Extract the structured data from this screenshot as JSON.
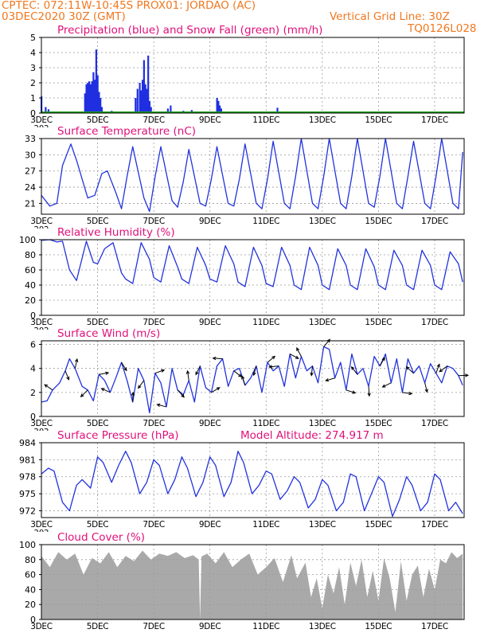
{
  "header": {
    "station": "CPTEC:   072:11W-10:45S   PROX01: JORDAO (AC)",
    "run": "03DEC2020 30Z (GMT)",
    "grid_note": "Vertical Grid Line: 30Z",
    "code": "TQ0126L028"
  },
  "colors": {
    "precip": "#1f2fe0",
    "snow": "#1ea01e",
    "line": "#2233dd",
    "title": "#e0107a",
    "header": "#f07820",
    "cloud": "#a9a9a9",
    "grid": "#9a9a9a"
  },
  "x_axis": {
    "tick_labels": [
      "3DEC",
      "5DEC",
      "7DEC",
      "9DEC",
      "11DEC",
      "13DEC",
      "15DEC",
      "17DEC"
    ],
    "tick_days": [
      3,
      5,
      7,
      9,
      11,
      13,
      15,
      17
    ],
    "cut_label": "202",
    "day_range": [
      3,
      18.05
    ]
  },
  "chart_data": [
    {
      "id": "precip",
      "type": "bar",
      "title": "Precipitation (blue) and Snow Fall (green) (mm/h)",
      "ylim": [
        0,
        5
      ],
      "yticks": [
        0,
        1,
        2,
        3,
        4,
        5
      ],
      "bars": [
        [
          3.0,
          1.1
        ],
        [
          3.15,
          0.4
        ],
        [
          3.25,
          0.25
        ],
        [
          3.6,
          0.1
        ],
        [
          4.55,
          1.3
        ],
        [
          4.6,
          1.9
        ],
        [
          4.65,
          2.0
        ],
        [
          4.7,
          2.1
        ],
        [
          4.75,
          1.9
        ],
        [
          4.8,
          2.1
        ],
        [
          4.85,
          2.7
        ],
        [
          4.9,
          2.2
        ],
        [
          4.95,
          4.2
        ],
        [
          5.0,
          2.5
        ],
        [
          5.05,
          1.4
        ],
        [
          5.1,
          1.0
        ],
        [
          5.15,
          0.4
        ],
        [
          5.5,
          0.15
        ],
        [
          5.85,
          0.1
        ],
        [
          6.35,
          1.0
        ],
        [
          6.42,
          1.6
        ],
        [
          6.5,
          2.0
        ],
        [
          6.55,
          1.5
        ],
        [
          6.6,
          2.2
        ],
        [
          6.65,
          3.5
        ],
        [
          6.7,
          1.9
        ],
        [
          6.75,
          1.6
        ],
        [
          6.8,
          3.8
        ],
        [
          6.85,
          0.8
        ],
        [
          6.9,
          0.4
        ],
        [
          7.5,
          0.3
        ],
        [
          7.6,
          0.5
        ],
        [
          8.05,
          0.15
        ],
        [
          8.35,
          0.2
        ],
        [
          9.25,
          1.0
        ],
        [
          9.3,
          0.8
        ],
        [
          9.35,
          0.5
        ],
        [
          9.4,
          0.3
        ],
        [
          10.4,
          0.1
        ],
        [
          11.4,
          0.35
        ],
        [
          12.0,
          0.1
        ],
        [
          14.3,
          0.1
        ],
        [
          16.9,
          0.1
        ]
      ]
    },
    {
      "id": "temperature",
      "type": "line",
      "title": "Surface Temperature (nC)",
      "ylim": [
        19,
        33
      ],
      "yticks": [
        21,
        24,
        27,
        30,
        33
      ],
      "x": [
        3.0,
        3.3,
        3.55,
        3.75,
        4.05,
        4.25,
        4.65,
        4.9,
        5.15,
        5.35,
        5.65,
        5.85,
        6.05,
        6.25,
        6.65,
        6.85,
        7.05,
        7.25,
        7.65,
        7.85,
        8.05,
        8.25,
        8.65,
        8.85,
        9.05,
        9.25,
        9.65,
        9.85,
        10.05,
        10.25,
        10.65,
        10.85,
        11.05,
        11.25,
        11.65,
        11.85,
        12.05,
        12.25,
        12.65,
        12.85,
        13.05,
        13.25,
        13.65,
        13.85,
        14.05,
        14.25,
        14.65,
        14.85,
        15.05,
        15.25,
        15.65,
        15.85,
        16.05,
        16.25,
        16.65,
        16.85,
        17.05,
        17.25,
        17.65,
        17.85,
        18.0
      ],
      "y": [
        22.5,
        20.5,
        21.0,
        28.0,
        32.0,
        29.0,
        22.0,
        22.5,
        26.5,
        27.0,
        23.0,
        20.0,
        26.0,
        31.5,
        22.0,
        19.5,
        26.0,
        31.5,
        21.5,
        20.3,
        25.0,
        31.0,
        21.0,
        20.5,
        25.5,
        31.5,
        21.0,
        20.5,
        25.5,
        32.0,
        21.0,
        20.0,
        25.5,
        32.5,
        21.0,
        20.0,
        26.0,
        33.0,
        21.0,
        20.0,
        26.0,
        33.0,
        21.0,
        20.0,
        26.0,
        33.0,
        21.0,
        20.3,
        26.0,
        33.0,
        21.0,
        20.0,
        26.0,
        32.5,
        21.0,
        20.0,
        26.0,
        33.0,
        21.0,
        20.0,
        30.5
      ]
    },
    {
      "id": "humidity",
      "type": "line",
      "title": "Relative Humidity (%)",
      "ylim": [
        0,
        100
      ],
      "yticks": [
        0,
        20,
        40,
        60,
        80,
        100
      ],
      "x": [
        3.0,
        3.3,
        3.55,
        3.75,
        4.0,
        4.25,
        4.6,
        4.85,
        5.0,
        5.25,
        5.55,
        5.85,
        6.0,
        6.25,
        6.55,
        6.85,
        7.0,
        7.25,
        7.55,
        7.85,
        8.0,
        8.25,
        8.55,
        8.85,
        9.0,
        9.25,
        9.55,
        9.85,
        10.0,
        10.25,
        10.55,
        10.85,
        11.0,
        11.25,
        11.55,
        11.85,
        12.0,
        12.25,
        12.55,
        12.85,
        13.0,
        13.25,
        13.55,
        13.85,
        14.0,
        14.25,
        14.55,
        14.85,
        15.0,
        15.25,
        15.55,
        15.85,
        16.0,
        16.25,
        16.55,
        16.85,
        17.0,
        17.25,
        17.55,
        17.85,
        18.0
      ],
      "y": [
        99,
        100,
        97,
        98,
        60,
        46,
        98,
        70,
        68,
        88,
        96,
        56,
        48,
        42,
        96,
        74,
        50,
        44,
        92,
        64,
        48,
        42,
        90,
        66,
        48,
        44,
        92,
        68,
        44,
        38,
        90,
        66,
        42,
        38,
        90,
        66,
        40,
        34,
        90,
        66,
        40,
        34,
        88,
        66,
        40,
        34,
        88,
        64,
        40,
        34,
        86,
        66,
        40,
        34,
        86,
        66,
        40,
        34,
        84,
        68,
        44
      ]
    },
    {
      "id": "wind",
      "type": "line",
      "title": "Surface Wind (m/s)",
      "ylim": [
        0,
        6.3
      ],
      "yticks": [
        0,
        2,
        4,
        6
      ],
      "x": [
        3.0,
        3.2,
        3.4,
        3.65,
        3.85,
        4.0,
        4.2,
        4.45,
        4.65,
        4.85,
        5.05,
        5.25,
        5.45,
        5.65,
        5.85,
        6.05,
        6.25,
        6.45,
        6.65,
        6.85,
        7.05,
        7.25,
        7.45,
        7.65,
        7.85,
        8.05,
        8.25,
        8.45,
        8.65,
        8.85,
        9.05,
        9.25,
        9.45,
        9.65,
        9.85,
        10.05,
        10.25,
        10.45,
        10.65,
        10.85,
        11.05,
        11.25,
        11.45,
        11.65,
        11.85,
        12.05,
        12.25,
        12.45,
        12.65,
        12.85,
        13.05,
        13.25,
        13.45,
        13.65,
        13.85,
        14.05,
        14.25,
        14.45,
        14.65,
        14.85,
        15.05,
        15.25,
        15.45,
        15.65,
        15.85,
        16.05,
        16.25,
        16.45,
        16.65,
        16.85,
        17.05,
        17.25,
        17.45,
        17.65,
        17.85,
        18.0
      ],
      "y": [
        1.2,
        1.3,
        2.2,
        2.8,
        3.8,
        4.8,
        4.0,
        2.5,
        2.2,
        1.3,
        3.5,
        3.0,
        2.0,
        3.2,
        4.5,
        3.0,
        1.2,
        4.0,
        3.0,
        0.3,
        3.6,
        2.8,
        0.8,
        4.0,
        2.2,
        1.8,
        3.0,
        1.2,
        4.2,
        2.4,
        2.0,
        4.2,
        4.8,
        2.5,
        3.8,
        4.0,
        2.6,
        3.2,
        4.2,
        2.0,
        4.5,
        3.8,
        4.2,
        2.5,
        5.2,
        3.2,
        5.0,
        3.8,
        4.2,
        2.8,
        5.8,
        5.6,
        3.2,
        4.5,
        2.2,
        5.2,
        3.5,
        4.0,
        2.5,
        5.0,
        4.2,
        5.2,
        2.8,
        4.8,
        2.0,
        4.8,
        3.6,
        4.2,
        2.8,
        4.4,
        3.6,
        2.8,
        4.2,
        4.0,
        3.4,
        2.6
      ]
    },
    {
      "id": "pressure",
      "type": "line",
      "title": "Surface Pressure (hPa)",
      "subtitle": "Model Altitude: 274.917 m",
      "ylim": [
        970.8,
        984
      ],
      "yticks": [
        972,
        975,
        978,
        981,
        984
      ],
      "x": [
        3.0,
        3.25,
        3.45,
        3.75,
        4.0,
        4.25,
        4.45,
        4.75,
        5.0,
        5.2,
        5.5,
        5.75,
        6.0,
        6.2,
        6.5,
        6.75,
        7.0,
        7.2,
        7.5,
        7.75,
        8.0,
        8.2,
        8.5,
        8.75,
        9.0,
        9.2,
        9.5,
        9.75,
        10.0,
        10.2,
        10.5,
        10.75,
        11.0,
        11.2,
        11.5,
        11.75,
        12.0,
        12.2,
        12.5,
        12.75,
        13.0,
        13.2,
        13.5,
        13.75,
        14.0,
        14.2,
        14.5,
        14.75,
        15.0,
        15.2,
        15.5,
        15.75,
        16.0,
        16.2,
        16.5,
        16.75,
        17.0,
        17.2,
        17.5,
        17.75,
        18.0
      ],
      "y": [
        978.5,
        979.5,
        979.0,
        973.5,
        972.0,
        976.5,
        977.5,
        976.0,
        981.5,
        980.5,
        977.0,
        980.0,
        982.5,
        980.5,
        975.0,
        977.0,
        981.0,
        980.0,
        975.0,
        977.5,
        981.5,
        979.5,
        974.5,
        977.0,
        981.5,
        980.0,
        974.5,
        977.0,
        982.5,
        980.5,
        975.0,
        976.5,
        979.0,
        978.5,
        974.0,
        975.5,
        978.0,
        977.0,
        972.5,
        974.0,
        977.5,
        976.5,
        972.0,
        973.5,
        978.5,
        978.0,
        972.0,
        975.0,
        978.0,
        977.0,
        971.0,
        974.0,
        978.0,
        976.5,
        972.0,
        973.5,
        978.5,
        977.5,
        972.0,
        973.5,
        971.5
      ]
    },
    {
      "id": "cloud",
      "type": "area",
      "title": "Cloud Cover (%)",
      "ylim": [
        0,
        100
      ],
      "yticks": [
        0,
        20,
        40,
        60,
        80,
        100
      ],
      "x": [
        3.0,
        3.3,
        3.6,
        3.9,
        4.2,
        4.5,
        4.8,
        5.1,
        5.4,
        5.7,
        6.0,
        6.3,
        6.6,
        6.9,
        7.2,
        7.5,
        7.8,
        8.1,
        8.4,
        8.6,
        8.65,
        8.7,
        8.9,
        9.2,
        9.5,
        9.8,
        10.1,
        10.4,
        10.7,
        11.0,
        11.3,
        11.6,
        11.9,
        12.1,
        12.4,
        12.6,
        12.8,
        13.0,
        13.2,
        13.4,
        13.6,
        13.8,
        14.0,
        14.2,
        14.4,
        14.6,
        14.8,
        15.0,
        15.2,
        15.4,
        15.6,
        15.8,
        16.0,
        16.2,
        16.4,
        16.6,
        16.8,
        17.0,
        17.2,
        17.4,
        17.6,
        17.8,
        18.0
      ],
      "y": [
        85,
        70,
        90,
        80,
        88,
        60,
        82,
        75,
        90,
        70,
        85,
        78,
        92,
        80,
        88,
        85,
        90,
        82,
        86,
        80,
        0,
        84,
        88,
        75,
        90,
        70,
        80,
        88,
        60,
        70,
        82,
        50,
        86,
        55,
        76,
        30,
        55,
        15,
        60,
        35,
        70,
        20,
        76,
        45,
        80,
        30,
        65,
        25,
        82,
        55,
        10,
        78,
        25,
        60,
        72,
        30,
        68,
        40,
        80,
        75,
        90,
        82,
        88
      ]
    }
  ]
}
